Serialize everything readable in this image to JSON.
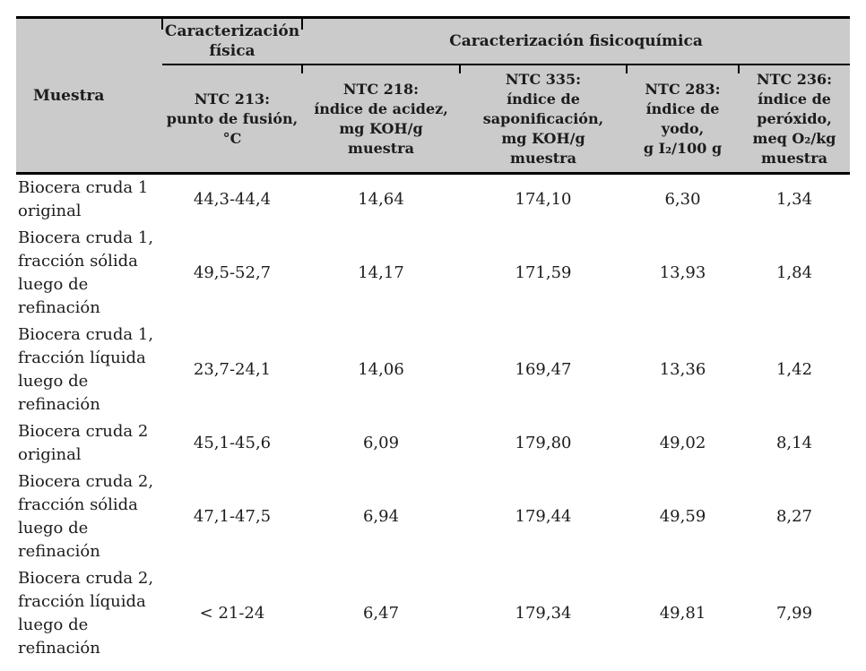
{
  "colors": {
    "header_bg": "#cbcbcb",
    "border": "#000000",
    "text": "#1c1c1c",
    "page_bg": "#ffffff"
  },
  "table": {
    "header": {
      "muestra": "Muestra",
      "group_fisica": "Caracterización\nfísica",
      "group_fisicoquimica": "Caracterización fisicoquímica",
      "columns": [
        "NTC 213:\npunto de fusión,\n°C",
        "NTC 218:\níndice de acidez,\nmg KOH/g\nmuestra",
        "NTC 335:\níndice de\nsaponificación,\nmg KOH/g\nmuestra",
        "NTC 283:\níndice de\nyodo,\ng I₂/100 g",
        "NTC 236:\níndice de\nperóxido,\nmeq O₂/kg\nmuestra"
      ]
    },
    "rows": [
      {
        "muestra": "Biocera cruda 1\noriginal",
        "values": [
          "44,3-44,4",
          "14,64",
          "174,10",
          "6,30",
          "1,34"
        ]
      },
      {
        "muestra": "Biocera cruda 1,\nfracción sólida\nluego de\nrefinación",
        "values": [
          "49,5-52,7",
          "14,17",
          "171,59",
          "13,93",
          "1,84"
        ]
      },
      {
        "muestra": "Biocera cruda 1,\nfracción líquida\nluego de\nrefinación",
        "values": [
          "23,7-24,1",
          "14,06",
          "169,47",
          "13,36",
          "1,42"
        ]
      },
      {
        "muestra": "Biocera cruda 2\noriginal",
        "values": [
          "45,1-45,6",
          "6,09",
          "179,80",
          "49,02",
          "8,14"
        ]
      },
      {
        "muestra": "Biocera cruda 2,\nfracción sólida\nluego de\nrefinación",
        "values": [
          "47,1-47,5",
          "6,94",
          "179,44",
          "49,59",
          "8,27"
        ]
      },
      {
        "muestra": "Biocera cruda 2,\nfracción líquida\nluego de\nrefinación",
        "values": [
          "< 21-24",
          "6,47",
          "179,34",
          "49,81",
          "7,99"
        ]
      }
    ]
  }
}
